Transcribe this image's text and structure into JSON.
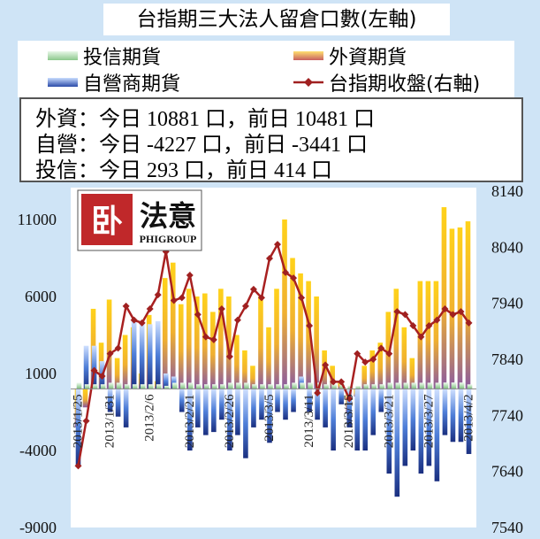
{
  "title": "台指期三大法人留倉口數(左軸)",
  "legend": [
    {
      "label": "投信期貨",
      "color": "#b8e0b8",
      "kind": "bar"
    },
    {
      "label": "外資期貨",
      "color": "#f5b800",
      "kind": "bar"
    },
    {
      "label": "自營商期貨",
      "color": "#3d6ecb",
      "kind": "bar"
    },
    {
      "label": "台指期收盤(右軸)",
      "color": "#a02020",
      "kind": "line"
    }
  ],
  "summary": [
    "外資：今日 10881 口，前日 10481 口",
    "自營：今日 -4227 口，前日 -3441 口",
    "投信：今日 293 口，前日 414 口"
  ],
  "logo": {
    "text": "法意",
    "sub": "PHIGROUP"
  },
  "chart_data": {
    "type": "bar",
    "title": "台指期三大法人留倉口數(左軸)",
    "y_left": {
      "min": -9000,
      "max": 11000,
      "ticks": [
        "11000",
        "6000",
        "1000",
        "-4000",
        "-9000"
      ]
    },
    "y_right": {
      "min": 7540,
      "max": 8140,
      "ticks": [
        "8140",
        "8040",
        "7940",
        "7840",
        "7740",
        "7640",
        "7540"
      ]
    },
    "x_tick_labels": [
      {
        "index": 0,
        "label": "2013/1/25"
      },
      {
        "index": 4,
        "label": "2013/1/31"
      },
      {
        "index": 9,
        "label": "2013/2/6"
      },
      {
        "index": 14,
        "label": "2013/2/21"
      },
      {
        "index": 19,
        "label": "2013/2/26"
      },
      {
        "index": 24,
        "label": "2013/3/5"
      },
      {
        "index": 29,
        "label": "2013/3/11"
      },
      {
        "index": 34,
        "label": "2013/3/15"
      },
      {
        "index": 39,
        "label": "2013/3/21"
      },
      {
        "index": 44,
        "label": "2013/3/27"
      },
      {
        "index": 49,
        "label": "2013/4/2"
      }
    ],
    "series": [
      {
        "name": "外資期貨",
        "values": [
          -2500,
          -1200,
          5200,
          3000,
          5800,
          2000,
          3500,
          4000,
          1000,
          4800,
          500,
          7200,
          8200,
          5500,
          6500,
          6000,
          6200,
          5000,
          6500,
          6000,
          3500,
          2500,
          1500,
          6000,
          4000,
          6500,
          11000,
          8500,
          7500,
          7000,
          6000,
          2500,
          1500,
          500,
          -1500,
          -500,
          1500,
          2500,
          3000,
          5000,
          6500,
          4000,
          2000,
          7000,
          7000,
          7000,
          11800,
          10400,
          10481,
          10881
        ]
      },
      {
        "name": "自營商期貨",
        "values": [
          -5000,
          2800,
          2800,
          1800,
          -1500,
          -1800,
          -2500,
          4500,
          4200,
          4200,
          4400,
          1000,
          800,
          -1500,
          -4000,
          -2500,
          -3000,
          -2800,
          -2000,
          -4000,
          -3000,
          -4500,
          -2500,
          -2000,
          -3500,
          -1500,
          -2000,
          -1500,
          800,
          -1500,
          -2000,
          -2500,
          -4000,
          -1000,
          -2500,
          -4000,
          -4000,
          -3000,
          -1500,
          -5500,
          -7000,
          -5000,
          -4000,
          -5500,
          -5000,
          -6000,
          -3000,
          -3441,
          -3441,
          -4227
        ]
      },
      {
        "name": "投信期貨",
        "values": [
          400,
          300,
          300,
          300,
          400,
          400,
          300,
          300,
          300,
          300,
          300,
          200,
          400,
          400,
          400,
          300,
          300,
          300,
          300,
          400,
          400,
          400,
          300,
          300,
          300,
          300,
          300,
          400,
          400,
          400,
          400,
          300,
          300,
          300,
          200,
          200,
          300,
          300,
          300,
          400,
          400,
          400,
          400,
          400,
          400,
          400,
          414,
          414,
          414,
          293
        ]
      },
      {
        "name": "台指期收盤(右軸)",
        "axis": "right",
        "values": [
          7650,
          7730,
          7820,
          7810,
          7850,
          7860,
          7935,
          7910,
          7905,
          7930,
          7955,
          8032,
          7945,
          7950,
          7990,
          7920,
          7880,
          7875,
          7930,
          7845,
          7910,
          7935,
          7965,
          7950,
          8020,
          8045,
          7995,
          7985,
          7950,
          7900,
          7780,
          7830,
          7800,
          7800,
          7770,
          7850,
          7835,
          7840,
          7860,
          7850,
          7925,
          7920,
          7900,
          7880,
          7900,
          7910,
          7930,
          7920,
          7925,
          7905
        ]
      }
    ]
  }
}
